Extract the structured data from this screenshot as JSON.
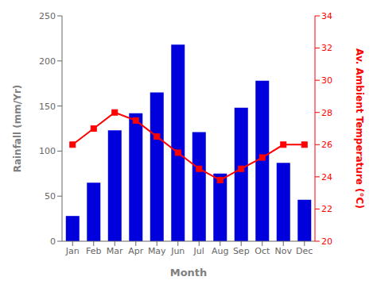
{
  "chart_data": {
    "type": "bar",
    "xlabel": "Month",
    "ylabel": "Rainfall (mm/Yr)",
    "y2label": "Av. Ambient Temperature (°C)",
    "categories": [
      "Jan",
      "Feb",
      "Mar",
      "Apr",
      "May",
      "Jun",
      "Jul",
      "Aug",
      "Sep",
      "Oct",
      "Nov",
      "Dec"
    ],
    "series": [
      {
        "type": "bar",
        "color": "#0000dd",
        "values": [
          28,
          65,
          123,
          142,
          165,
          218,
          121,
          75,
          148,
          178,
          87,
          46
        ]
      },
      {
        "type": "line",
        "axis": "y2",
        "color": "#ff0000",
        "marker": "square",
        "line_style": "solid",
        "values": [
          26.0,
          27.0,
          28.0,
          27.5,
          26.5,
          25.5,
          24.5,
          23.8,
          24.5,
          25.2,
          26.0,
          26.0
        ]
      }
    ],
    "ylim": [
      0,
      250
    ],
    "yticks": [
      0,
      50,
      100,
      150,
      200,
      250
    ],
    "y2lim": [
      20,
      34
    ],
    "y2ticks": [
      20,
      22,
      24,
      26,
      28,
      30,
      32,
      34
    ],
    "grid": false
  }
}
